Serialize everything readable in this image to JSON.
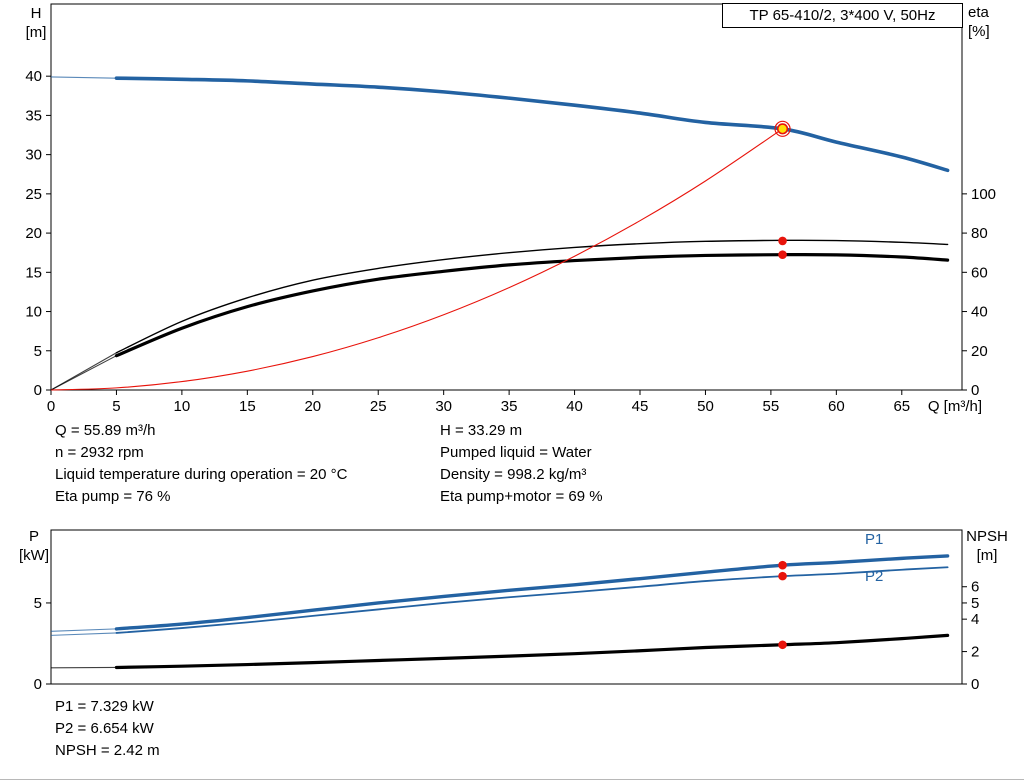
{
  "header": {
    "title_box": "TP 65-410/2, 3*400 V, 50Hz"
  },
  "axis_labels": {
    "h": "H",
    "h_unit": "[m]",
    "eta": "eta",
    "eta_unit": "[%]",
    "q": "Q [m³/h]",
    "p": "P",
    "p_unit": "[kW]",
    "npsh": "NPSH",
    "npsh_unit": "[m]"
  },
  "curve_labels": {
    "p1": "P1",
    "p2": "P2"
  },
  "operating_point": {
    "left": [
      "Q = 55.89 m³/h",
      "n = 2932 rpm",
      "Liquid temperature during operation = 20 °C",
      "Eta pump = 76 %"
    ],
    "right": [
      "H = 33.29 m",
      "Pumped liquid = Water",
      "Density = 998.2 kg/m³",
      "Eta pump+motor = 69 %"
    ]
  },
  "results": [
    "P1 = 7.329 kW",
    "P2 = 6.654 kW",
    "NPSH = 2.42 m"
  ],
  "colors": {
    "curve_blue": "#2362a2",
    "curve_black": "#000000",
    "curve_red": "#e8140c",
    "duty_yellow": "#ffe10a"
  },
  "chart_data": [
    {
      "type": "line",
      "title": "TP 65-410/2, 3*400 V, 50Hz",
      "xlabel": "Q [m³/h]",
      "ylabel_left": "H [m]",
      "ylabel_right": "eta [%]",
      "xlim": [
        0,
        69.6
      ],
      "ylim_left": [
        0,
        49.2
      ],
      "ylim_right": [
        0,
        196.8
      ],
      "xticks": [
        0,
        5,
        10,
        15,
        20,
        25,
        30,
        35,
        40,
        45,
        50,
        55,
        60,
        65
      ],
      "yticks_left": [
        0,
        5,
        10,
        15,
        20,
        25,
        30,
        35,
        40
      ],
      "yticks_right": [
        0,
        20,
        40,
        60,
        80,
        100
      ],
      "grid": false,
      "series": [
        {
          "name": "head",
          "axis": "left",
          "color": "#2362a2",
          "width": 3.6,
          "thin_until": 5,
          "x": [
            0,
            5,
            10,
            15,
            20,
            25,
            30,
            35,
            40,
            45,
            50,
            55.89,
            60,
            65,
            68.5
          ],
          "y": [
            39.9,
            39.75,
            39.6,
            39.4,
            39.0,
            38.6,
            38.0,
            37.2,
            36.3,
            35.3,
            34.1,
            33.29,
            31.6,
            29.7,
            28.0
          ]
        },
        {
          "name": "eta-pump",
          "axis": "right",
          "color": "#000000",
          "width": 1.4,
          "thin_until": 5,
          "x": [
            0,
            5,
            10,
            15,
            20,
            25,
            30,
            35,
            40,
            45,
            50,
            55.89,
            60,
            65,
            68.5
          ],
          "y": [
            0,
            19,
            35,
            47,
            56,
            62,
            66.5,
            70,
            72.7,
            74.6,
            75.8,
            76.3,
            76.2,
            75.3,
            74.2
          ]
        },
        {
          "name": "eta-pump-motor",
          "axis": "right",
          "color": "#000000",
          "width": 3.2,
          "thin_until": 5,
          "x": [
            0,
            5,
            10,
            15,
            20,
            25,
            30,
            35,
            40,
            45,
            50,
            55.89,
            60,
            65,
            68.5
          ],
          "y": [
            0,
            17.5,
            31.5,
            42.5,
            50.5,
            56.5,
            60.5,
            63.8,
            66.0,
            67.6,
            68.6,
            69.0,
            68.9,
            67.8,
            66.2
          ]
        },
        {
          "name": "duty-parabola",
          "axis": "left",
          "color": "#e8140c",
          "width": 1.1,
          "x": [
            0,
            5,
            10,
            15,
            20,
            25,
            30,
            35,
            40,
            45,
            50,
            55.89
          ],
          "y": [
            0,
            0.27,
            1.07,
            2.4,
            4.26,
            6.66,
            9.59,
            13.05,
            17.05,
            21.58,
            26.64,
            33.29
          ]
        }
      ],
      "markers": [
        {
          "name": "duty-point-marker",
          "x": 55.89,
          "y": 33.29,
          "axis": "left",
          "style": "duty"
        },
        {
          "name": "eta-pump-point",
          "x": 55.89,
          "y": 76,
          "axis": "right",
          "style": "dot"
        },
        {
          "name": "eta-pump-motor-point",
          "x": 55.89,
          "y": 69,
          "axis": "right",
          "style": "dot"
        }
      ]
    },
    {
      "type": "line",
      "title": "",
      "xlabel": "",
      "ylabel_left": "P [kW]",
      "ylabel_right": "NPSH [m]",
      "xlim": [
        0,
        69.6
      ],
      "ylim_left": [
        0,
        9.5
      ],
      "ylim_right": [
        0,
        9.5
      ],
      "xticks": [],
      "yticks_left": [
        0,
        5
      ],
      "yticks_right": [
        0,
        2,
        4,
        5,
        6
      ],
      "grid": false,
      "series": [
        {
          "name": "p1",
          "axis": "left",
          "color": "#2362a2",
          "width": 3.4,
          "thin_until": 5,
          "x": [
            0,
            5,
            10,
            15,
            20,
            25,
            30,
            35,
            40,
            45,
            50,
            55.89,
            60,
            65,
            68.5
          ],
          "y": [
            3.25,
            3.4,
            3.7,
            4.1,
            4.55,
            5.0,
            5.4,
            5.78,
            6.12,
            6.5,
            6.9,
            7.329,
            7.5,
            7.75,
            7.9
          ]
        },
        {
          "name": "p2",
          "axis": "left",
          "color": "#2362a2",
          "width": 1.8,
          "thin_until": 5,
          "x": [
            0,
            5,
            10,
            15,
            20,
            25,
            30,
            35,
            40,
            45,
            50,
            55.89,
            60,
            65,
            68.5
          ],
          "y": [
            3.0,
            3.15,
            3.45,
            3.8,
            4.2,
            4.6,
            5.0,
            5.35,
            5.67,
            6.0,
            6.35,
            6.654,
            6.8,
            7.05,
            7.2
          ]
        },
        {
          "name": "npsh",
          "axis": "right",
          "color": "#000000",
          "width": 3.2,
          "thin_until": 5,
          "x": [
            0,
            5,
            10,
            15,
            20,
            25,
            30,
            35,
            40,
            45,
            50,
            55.89,
            60,
            65,
            68.5
          ],
          "y": [
            1.0,
            1.02,
            1.1,
            1.2,
            1.32,
            1.45,
            1.58,
            1.72,
            1.87,
            2.05,
            2.25,
            2.42,
            2.55,
            2.8,
            3.0
          ]
        }
      ],
      "markers": [
        {
          "name": "p1-point",
          "x": 55.89,
          "y": 7.329,
          "axis": "left",
          "style": "dot"
        },
        {
          "name": "p2-point",
          "x": 55.89,
          "y": 6.654,
          "axis": "left",
          "style": "dot"
        },
        {
          "name": "npsh-point",
          "x": 55.89,
          "y": 2.42,
          "axis": "right",
          "style": "dot"
        }
      ]
    }
  ]
}
